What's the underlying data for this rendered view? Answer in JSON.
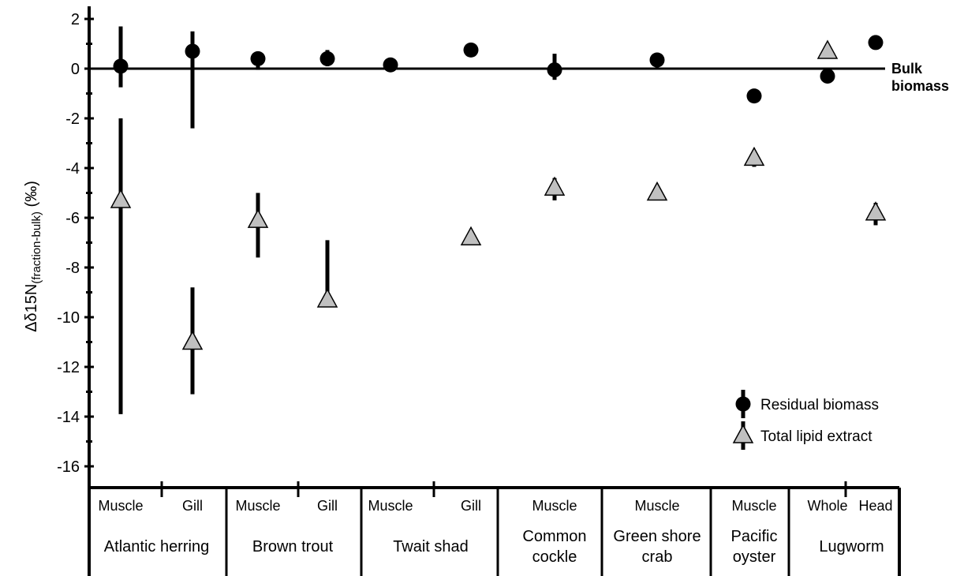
{
  "chart_data": {
    "type": "scatter",
    "ylabel": {
      "prefix": "Δδ15N",
      "subscript": "(fraction-bulk)",
      "suffix": " (‰)"
    },
    "ylim": [
      -17,
      2.4
    ],
    "yticks": [
      2,
      0,
      -2,
      -4,
      -6,
      -8,
      -10,
      -12,
      -14,
      -16
    ],
    "ytick_labels": [
      "2",
      "0",
      "-2",
      "-4",
      "-6",
      "-8",
      "-10",
      "-12",
      "-14",
      "-16"
    ],
    "grid": false,
    "legend_position": "bottom-right",
    "reference_line": {
      "y": 0,
      "label_lines": [
        "Bulk",
        "biomass"
      ]
    },
    "categories": [
      {
        "tissue": "Muscle",
        "species": "Atlantic herring"
      },
      {
        "tissue": "Gill",
        "species": "Atlantic herring"
      },
      {
        "tissue": "Muscle",
        "species": "Brown trout"
      },
      {
        "tissue": "Gill",
        "species": "Brown trout"
      },
      {
        "tissue": "Muscle",
        "species": "Twait shad"
      },
      {
        "tissue": "Gill",
        "species": "Twait shad"
      },
      {
        "tissue": "Muscle",
        "species": "Common cockle"
      },
      {
        "tissue": "Muscle",
        "species": "Green shore crab"
      },
      {
        "tissue": "Muscle",
        "species": "Pacific oyster"
      },
      {
        "tissue": "Whole",
        "species": "Lugworm"
      },
      {
        "tissue": "Head",
        "species": "Lugworm"
      }
    ],
    "species_groups": [
      {
        "lines": [
          "Atlantic herring"
        ],
        "span": [
          0,
          1
        ]
      },
      {
        "lines": [
          "Brown trout"
        ],
        "span": [
          2,
          3
        ]
      },
      {
        "lines": [
          "Twait shad"
        ],
        "span": [
          4,
          5
        ]
      },
      {
        "lines": [
          "Common",
          "cockle"
        ],
        "span": [
          6,
          6
        ]
      },
      {
        "lines": [
          "Green shore",
          "crab"
        ],
        "span": [
          7,
          7
        ]
      },
      {
        "lines": [
          "Pacific",
          "oyster"
        ],
        "span": [
          8,
          8
        ]
      },
      {
        "lines": [
          "Lugworm"
        ],
        "span": [
          9,
          10
        ]
      }
    ],
    "series": [
      {
        "name": "Residual biomass",
        "marker": "circle",
        "color": "#000000",
        "values": [
          0.1,
          0.7,
          0.4,
          0.4,
          0.15,
          0.75,
          -0.05,
          0.35,
          -1.1,
          -0.3,
          1.05
        ],
        "err_low": [
          -0.75,
          -2.4,
          -0.05,
          0.1,
          null,
          null,
          -0.45,
          0.05,
          null,
          null,
          null
        ],
        "err_high": [
          1.7,
          1.5,
          0.55,
          0.75,
          null,
          null,
          0.6,
          0.5,
          null,
          null,
          null
        ]
      },
      {
        "name": "Total lipid extract",
        "marker": "triangle",
        "color": "#c0c0c0",
        "values": [
          -5.3,
          -11.0,
          -6.1,
          -9.3,
          null,
          -6.8,
          -4.8,
          -5.0,
          -3.6,
          0.7,
          -5.8
        ],
        "err_low": [
          -13.9,
          -13.1,
          -7.6,
          null,
          null,
          null,
          -5.3,
          null,
          -3.95,
          null,
          -6.3
        ],
        "err_high": [
          -2.0,
          -8.8,
          -5.0,
          -6.9,
          null,
          null,
          -4.4,
          null,
          null,
          null,
          -5.4
        ]
      }
    ]
  }
}
